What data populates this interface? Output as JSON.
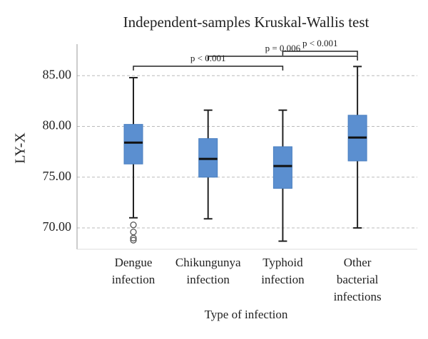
{
  "chart_data": {
    "type": "box",
    "title": "Independent-samples Kruskal-Wallis test",
    "x_label": "Type of infection",
    "y_label": "LY-X",
    "categories": [
      [
        "Dengue",
        "infection"
      ],
      [
        "Chikungunya",
        "infection"
      ],
      [
        "Typhoid",
        "infection"
      ],
      [
        "Other",
        "bacterial",
        "infections"
      ]
    ],
    "color": "#5b8fd0",
    "grid": true,
    "ylim": [
      67.9,
      88.1
    ],
    "yticks": [
      {
        "value": 70,
        "label": "70.00"
      },
      {
        "value": 75,
        "label": "75.00"
      },
      {
        "value": 80,
        "label": "80.00"
      },
      {
        "value": 85,
        "label": "85.00"
      }
    ],
    "boxes": [
      {
        "min": 71.0,
        "q1": 76.3,
        "median": 78.4,
        "q3": 80.2,
        "max": 84.8,
        "outliers": [
          70.3,
          69.6,
          69.0,
          68.8
        ]
      },
      {
        "min": 70.9,
        "q1": 75.0,
        "median": 76.8,
        "q3": 78.8,
        "max": 81.6,
        "outliers": []
      },
      {
        "min": 68.7,
        "q1": 73.9,
        "median": 76.1,
        "q3": 78.0,
        "max": 81.6,
        "outliers": []
      },
      {
        "min": 70.0,
        "q1": 76.6,
        "median": 78.9,
        "q3": 81.1,
        "max": 85.9,
        "outliers": []
      }
    ],
    "comparisons": [
      {
        "groups": [
          0,
          2
        ],
        "label": "p < 0.001"
      },
      {
        "groups": [
          1,
          3
        ],
        "label": "p = 0.006"
      },
      {
        "groups": [
          2,
          3
        ],
        "label": "p < 0.001"
      }
    ]
  }
}
